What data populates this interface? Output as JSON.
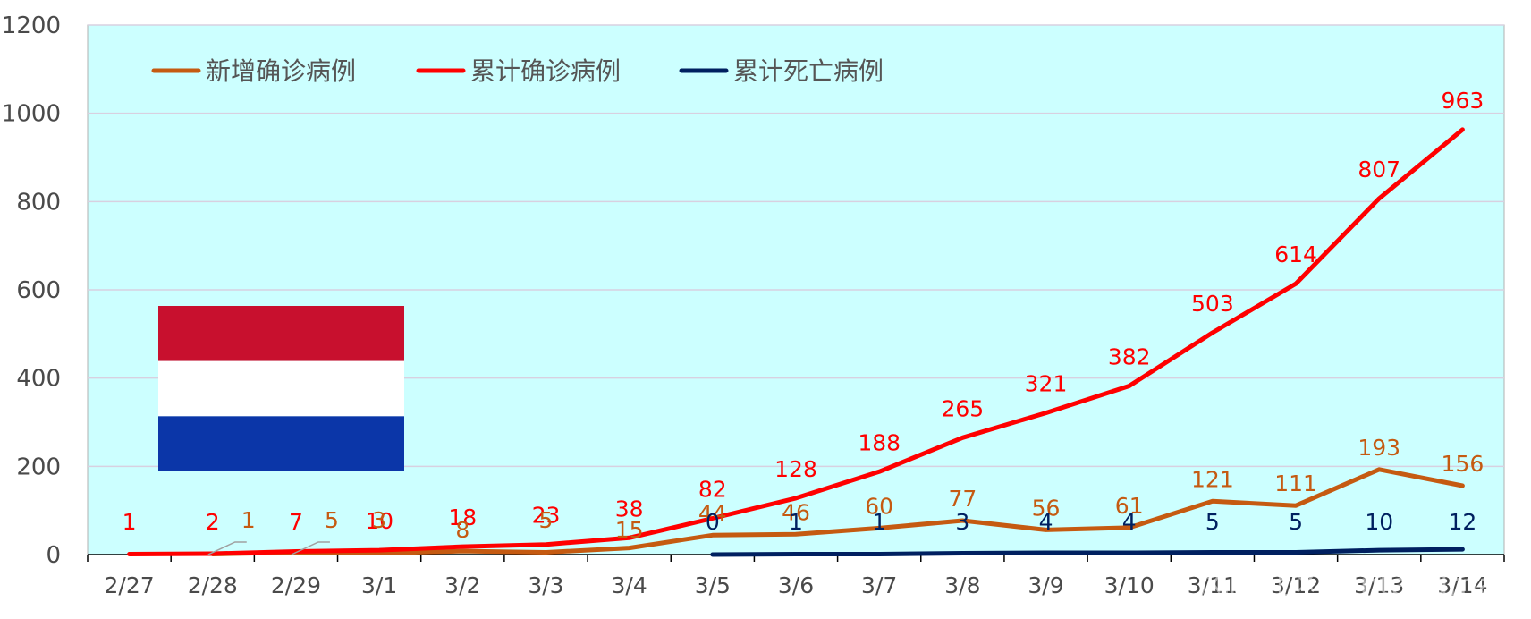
{
  "colors": {
    "page_background": "#ffffff",
    "plot_background": "#ccffff",
    "gridline": "#d8d0e0",
    "axis": "#000000",
    "flag_red": "#c8102e",
    "flag_white": "#ffffff",
    "flag_blue": "#0b36a8"
  },
  "chart_data": {
    "type": "line",
    "categories": [
      "2/27",
      "2/28",
      "2/29",
      "3/1",
      "3/2",
      "3/3",
      "3/4",
      "3/5",
      "3/6",
      "3/7",
      "3/8",
      "3/9",
      "3/10",
      "3/11",
      "3/12",
      "3/13",
      "3/14"
    ],
    "ylim": [
      0,
      1200
    ],
    "yticks": [
      0,
      200,
      400,
      600,
      800,
      1000,
      1200
    ],
    "grid": true,
    "legend_position": "top-left",
    "series": [
      {
        "name": "新增确诊病例",
        "color": "#c55a11",
        "values": [
          null,
          1,
          5,
          3,
          8,
          5,
          15,
          44,
          46,
          60,
          77,
          56,
          61,
          121,
          111,
          193,
          156
        ]
      },
      {
        "name": "累计确诊病例",
        "color": "#ff0000",
        "values": [
          1,
          2,
          7,
          10,
          18,
          23,
          38,
          82,
          128,
          188,
          265,
          321,
          382,
          503,
          614,
          807,
          963
        ]
      },
      {
        "name": "累计死亡病例",
        "color": "#002060",
        "values": [
          null,
          null,
          null,
          null,
          null,
          null,
          null,
          0,
          1,
          1,
          3,
          4,
          4,
          5,
          5,
          10,
          12
        ]
      }
    ]
  },
  "watermark": "风闻社区 @ntandman"
}
